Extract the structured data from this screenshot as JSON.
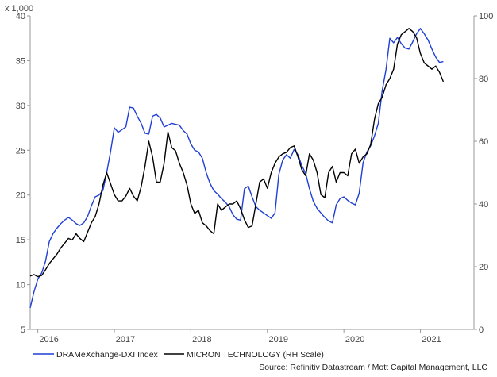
{
  "colors": {
    "dram": "#1f3fd6",
    "micron": "#000000",
    "axis": "#999999",
    "grid": "#dddddd"
  },
  "multiplier_label": "x 1,000",
  "legend": {
    "dram_label": "DRAMeXchange-DXI Index",
    "micron_label": "MICRON TECHNOLOGY (RH Scale)"
  },
  "source": "Source: Refinitiv Datastream / Mott Capital Management, LLC",
  "chart_data": {
    "type": "line",
    "title": "",
    "xlabel": "",
    "ylabel_left": "x 1,000",
    "ylabel_right": "",
    "x_range": [
      2015.8,
      2021.6
    ],
    "x_ticks": [
      {
        "value": 2015.9,
        "label": "2016"
      },
      {
        "value": 2016.9,
        "label": "2017"
      },
      {
        "value": 2017.9,
        "label": "2018"
      },
      {
        "value": 2018.9,
        "label": "2019"
      },
      {
        "value": 2019.9,
        "label": "2020"
      },
      {
        "value": 2020.9,
        "label": "2021"
      }
    ],
    "y_left": {
      "range": [
        5,
        40
      ],
      "ticks": [
        5,
        10,
        15,
        20,
        25,
        30,
        35,
        40
      ],
      "unit": "thousands"
    },
    "y_right": {
      "range": [
        0,
        100
      ],
      "ticks": [
        0,
        20,
        40,
        60,
        80,
        100
      ]
    },
    "grid": false,
    "legend_position": "bottom-left",
    "series": [
      {
        "name": "DRAMeXchange-DXI Index",
        "axis": "left",
        "x": [
          2015.8,
          2015.85,
          2015.9,
          2015.95,
          2016.0,
          2016.05,
          2016.1,
          2016.15,
          2016.2,
          2016.25,
          2016.3,
          2016.35,
          2016.4,
          2016.45,
          2016.5,
          2016.55,
          2016.6,
          2016.65,
          2016.7,
          2016.75,
          2016.8,
          2016.85,
          2016.9,
          2016.95,
          2017.0,
          2017.05,
          2017.1,
          2017.15,
          2017.2,
          2017.25,
          2017.3,
          2017.35,
          2017.4,
          2017.45,
          2017.5,
          2017.55,
          2017.6,
          2017.65,
          2017.7,
          2017.75,
          2017.8,
          2017.85,
          2017.9,
          2017.95,
          2018.0,
          2018.05,
          2018.1,
          2018.15,
          2018.2,
          2018.25,
          2018.3,
          2018.35,
          2018.4,
          2018.45,
          2018.5,
          2018.55,
          2018.6,
          2018.65,
          2018.7,
          2018.75,
          2018.8,
          2018.85,
          2018.9,
          2018.95,
          2019.0,
          2019.05,
          2019.1,
          2019.15,
          2019.2,
          2019.25,
          2019.3,
          2019.35,
          2019.4,
          2019.45,
          2019.5,
          2019.55,
          2019.6,
          2019.65,
          2019.7,
          2019.75,
          2019.8,
          2019.85,
          2019.9,
          2019.95,
          2020.0,
          2020.05,
          2020.1,
          2020.15,
          2020.2,
          2020.25,
          2020.3,
          2020.35,
          2020.4,
          2020.45,
          2020.5,
          2020.55,
          2020.6,
          2020.65,
          2020.7,
          2020.75,
          2020.8,
          2020.85,
          2020.9,
          2020.95,
          2021.0,
          2021.05,
          2021.1,
          2021.15,
          2021.2
        ],
        "values": [
          7.4,
          9.2,
          10.6,
          11.3,
          12.6,
          14.8,
          15.7,
          16.3,
          16.8,
          17.2,
          17.5,
          17.2,
          16.8,
          16.6,
          16.9,
          17.6,
          18.8,
          19.8,
          20.0,
          20.5,
          22.5,
          24.8,
          27.5,
          27.0,
          27.3,
          27.6,
          29.8,
          29.7,
          28.8,
          28.0,
          26.9,
          26.8,
          28.8,
          29.0,
          28.6,
          27.6,
          27.8,
          28.0,
          27.9,
          27.8,
          27.2,
          26.8,
          25.7,
          25.0,
          24.8,
          24.1,
          22.5,
          21.3,
          20.5,
          20.1,
          19.6,
          19.2,
          18.7,
          17.8,
          17.3,
          17.2,
          20.7,
          21.0,
          19.8,
          18.7,
          18.3,
          18.0,
          17.7,
          17.4,
          18.0,
          22.3,
          23.9,
          24.5,
          24.1,
          25.1,
          24.5,
          23.3,
          22.4,
          20.7,
          19.3,
          18.5,
          18.0,
          17.5,
          17.1,
          16.9,
          18.9,
          19.6,
          19.8,
          19.4,
          19.1,
          18.9,
          20.2,
          23.6,
          24.8,
          25.5,
          26.6,
          28.0,
          31.6,
          34.0,
          37.5,
          37.0,
          37.6,
          36.9,
          36.4,
          36.3,
          37.1,
          38.0,
          38.6,
          38.0,
          37.3,
          36.3,
          35.4,
          34.8,
          34.9
        ]
      },
      {
        "name": "MICRON TECHNOLOGY (RH Scale)",
        "axis": "right",
        "x": [
          2015.8,
          2015.85,
          2015.9,
          2015.95,
          2016.0,
          2016.05,
          2016.1,
          2016.15,
          2016.2,
          2016.25,
          2016.3,
          2016.35,
          2016.4,
          2016.45,
          2016.5,
          2016.55,
          2016.6,
          2016.65,
          2016.7,
          2016.75,
          2016.8,
          2016.85,
          2016.9,
          2016.95,
          2017.0,
          2017.05,
          2017.1,
          2017.15,
          2017.2,
          2017.25,
          2017.3,
          2017.35,
          2017.4,
          2017.45,
          2017.5,
          2017.55,
          2017.6,
          2017.65,
          2017.7,
          2017.75,
          2017.8,
          2017.85,
          2017.9,
          2017.95,
          2018.0,
          2018.05,
          2018.1,
          2018.15,
          2018.2,
          2018.25,
          2018.3,
          2018.35,
          2018.4,
          2018.45,
          2018.5,
          2018.55,
          2018.6,
          2018.65,
          2018.7,
          2018.75,
          2018.8,
          2018.85,
          2018.9,
          2018.95,
          2019.0,
          2019.05,
          2019.1,
          2019.15,
          2019.2,
          2019.25,
          2019.3,
          2019.35,
          2019.4,
          2019.45,
          2019.5,
          2019.55,
          2019.6,
          2019.65,
          2019.7,
          2019.75,
          2019.8,
          2019.85,
          2019.9,
          2019.95,
          2020.0,
          2020.05,
          2020.1,
          2020.15,
          2020.2,
          2020.25,
          2020.3,
          2020.35,
          2020.4,
          2020.45,
          2020.5,
          2020.55,
          2020.6,
          2020.65,
          2020.7,
          2020.75,
          2020.8,
          2020.85,
          2020.9,
          2020.95,
          2021.0,
          2021.05,
          2021.1,
          2021.15,
          2021.2
        ],
        "values": [
          17,
          17.5,
          16.8,
          17.2,
          19,
          21,
          22.5,
          24,
          26,
          27.5,
          29,
          28.5,
          30.5,
          29,
          28,
          31,
          34,
          36,
          40,
          46,
          50,
          46.5,
          43,
          41,
          41,
          42.5,
          45,
          42.5,
          41,
          45.5,
          52,
          60,
          55,
          47,
          47,
          53,
          63,
          58,
          57,
          53,
          50,
          46,
          40,
          37,
          38,
          34,
          33,
          31.5,
          30.5,
          40,
          38,
          39,
          40,
          40,
          41,
          38.5,
          35,
          32.5,
          33,
          40,
          47,
          48,
          45,
          50,
          53,
          55,
          56,
          56.5,
          58,
          58.5,
          55,
          51,
          49,
          56,
          54,
          50,
          43,
          42,
          50,
          52,
          47,
          50,
          50,
          49,
          56,
          57.5,
          53,
          55,
          56,
          59,
          67,
          72,
          74,
          78,
          80,
          83,
          91,
          94,
          95,
          96,
          95,
          93,
          88,
          85,
          84,
          83,
          84,
          82,
          79
        ]
      }
    ]
  }
}
